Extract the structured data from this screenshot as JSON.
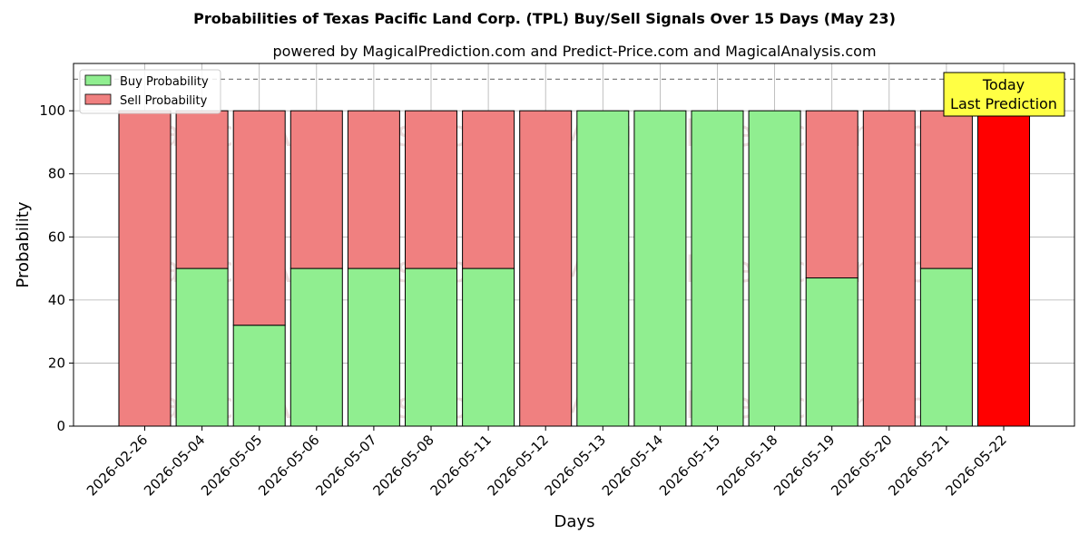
{
  "chart_data": {
    "type": "bar",
    "stacked": true,
    "title": "Probabilities of Texas Pacific Land Corp. (TPL) Buy/Sell Signals Over 15 Days (May 23)",
    "subtitle": "powered by MagicalPrediction.com and Predict-Price.com and MagicalAnalysis.com",
    "xlabel": "Days",
    "ylabel": "Probability",
    "ylim": [
      0,
      115
    ],
    "yticks": [
      0,
      20,
      40,
      60,
      80,
      100
    ],
    "grid": true,
    "legend_position": "top-left",
    "reference_line": 110,
    "categories": [
      "2026-02-26",
      "2026-05-04",
      "2026-05-05",
      "2026-05-06",
      "2026-05-07",
      "2026-05-08",
      "2026-05-11",
      "2026-05-12",
      "2026-05-13",
      "2026-05-14",
      "2026-05-15",
      "2026-05-18",
      "2026-05-19",
      "2026-05-20",
      "2026-05-21",
      "2026-05-22"
    ],
    "series": [
      {
        "name": "Buy Probability",
        "color": "#90ee90",
        "values": [
          0,
          50,
          32,
          50,
          50,
          50,
          50,
          0,
          100,
          100,
          100,
          100,
          47,
          0,
          50,
          0
        ]
      },
      {
        "name": "Sell Probability",
        "color": "#f08080",
        "values": [
          100,
          50,
          68,
          50,
          50,
          50,
          50,
          100,
          0,
          0,
          0,
          0,
          53,
          100,
          50,
          100
        ]
      }
    ],
    "highlight": {
      "index": 15,
      "color": "#ff0000"
    },
    "annotation": {
      "lines": [
        "Today",
        "Last Prediction"
      ],
      "background": "#ffff44"
    },
    "watermarks": [
      "MagicalAnalysis.com",
      "MagicalPrediction.com"
    ]
  }
}
